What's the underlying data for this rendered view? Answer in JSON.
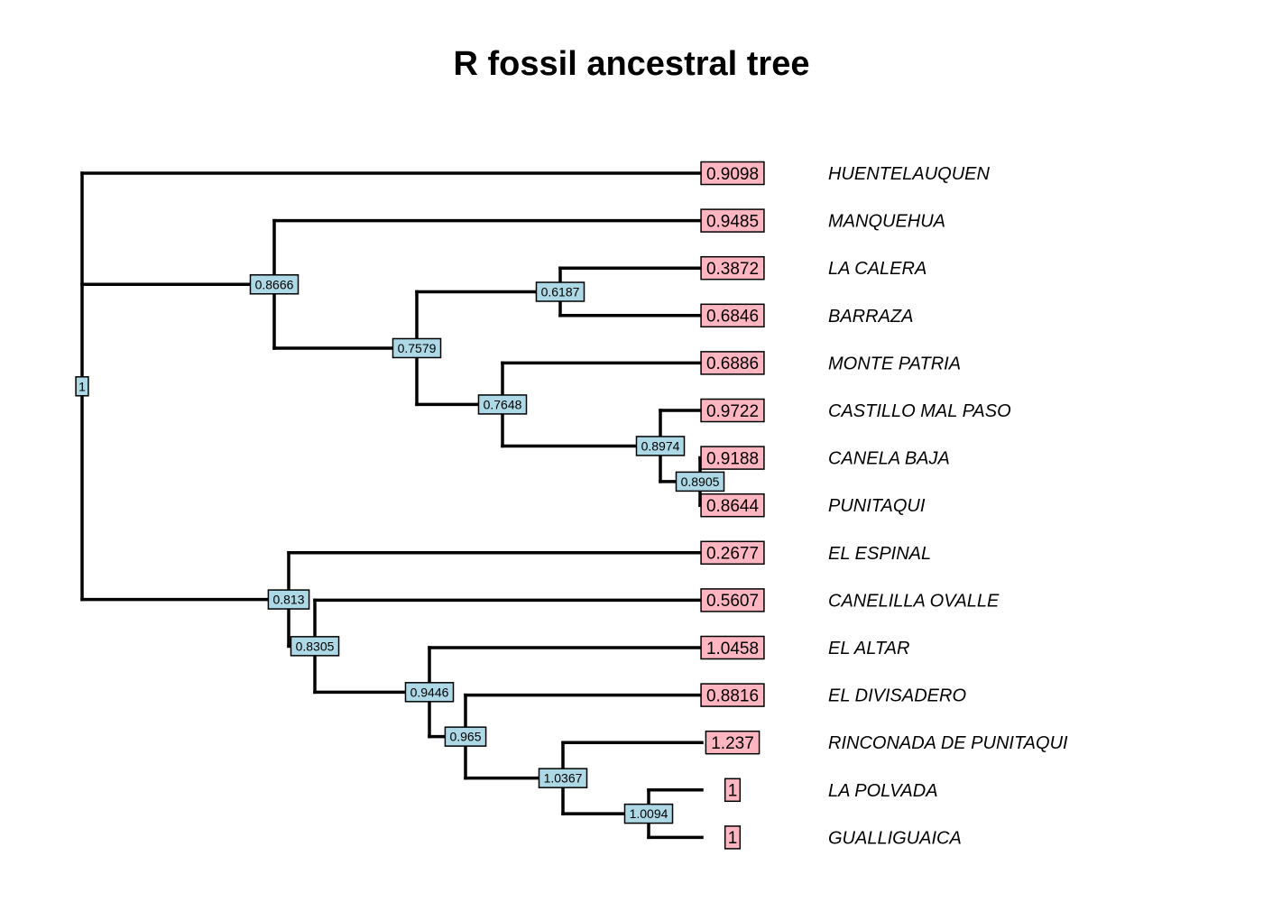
{
  "title": "R fossil ancestral tree",
  "colors": {
    "internal_label_fill": "#add8e6",
    "tip_label_fill": "#ffb6c1",
    "branch": "#000000"
  },
  "chart_data": {
    "type": "phylogenetic-tree",
    "title": "R fossil ancestral tree",
    "tips": [
      {
        "name": "HUENTELAUQUEN",
        "value": "0.9098"
      },
      {
        "name": "MANQUEHUA",
        "value": "0.9485"
      },
      {
        "name": "LA CALERA",
        "value": "0.3872"
      },
      {
        "name": "BARRAZA",
        "value": "0.6846"
      },
      {
        "name": "MONTE PATRIA",
        "value": "0.6886"
      },
      {
        "name": "CASTILLO MAL PASO",
        "value": "0.9722"
      },
      {
        "name": "CANELA BAJA",
        "value": "0.9188"
      },
      {
        "name": "PUNITAQUI",
        "value": "0.8644"
      },
      {
        "name": "EL ESPINAL",
        "value": "0.2677"
      },
      {
        "name": "CANELILLA OVALLE",
        "value": "0.5607"
      },
      {
        "name": "EL ALTAR",
        "value": "1.0458"
      },
      {
        "name": "EL DIVISADERO",
        "value": "0.8816"
      },
      {
        "name": "RINCONADA DE PUNITAQUI",
        "value": "1.237"
      },
      {
        "name": "LA POLVADA",
        "value": "1"
      },
      {
        "name": "GUALLIGUAICA",
        "value": "1"
      }
    ],
    "nodes": [
      {
        "id": "root",
        "value": "1",
        "children": [
          "HUENTELAUQUEN",
          "n_8666",
          "n_813"
        ]
      },
      {
        "id": "n_8666",
        "value": "0.8666",
        "children": [
          "MANQUEHUA",
          "n_7579"
        ]
      },
      {
        "id": "n_7579",
        "value": "0.7579",
        "children": [
          "n_6187",
          "n_7648"
        ]
      },
      {
        "id": "n_6187",
        "value": "0.6187",
        "children": [
          "LA CALERA",
          "BARRAZA"
        ]
      },
      {
        "id": "n_7648",
        "value": "0.7648",
        "children": [
          "MONTE PATRIA",
          "n_8974"
        ]
      },
      {
        "id": "n_8974",
        "value": "0.8974",
        "children": [
          "CASTILLO MAL PASO",
          "n_8905"
        ]
      },
      {
        "id": "n_8905",
        "value": "0.8905",
        "children": [
          "CANELA BAJA",
          "PUNITAQUI"
        ]
      },
      {
        "id": "n_813",
        "value": "0.813",
        "children": [
          "EL ESPINAL",
          "n_8305"
        ]
      },
      {
        "id": "n_8305",
        "value": "0.8305",
        "children": [
          "CANELILLA OVALLE",
          "n_9446"
        ]
      },
      {
        "id": "n_9446",
        "value": "0.9446",
        "children": [
          "EL ALTAR",
          "n_965"
        ]
      },
      {
        "id": "n_965",
        "value": "0.965",
        "children": [
          "EL DIVISADERO",
          "n_10367"
        ]
      },
      {
        "id": "n_10367",
        "value": "1.0367",
        "children": [
          "RINCONADA DE PUNITAQUI",
          "n_10094"
        ]
      },
      {
        "id": "n_10094",
        "value": "1.0094",
        "children": [
          "LA POLVADA",
          "GUALLIGUAICA"
        ]
      }
    ]
  }
}
